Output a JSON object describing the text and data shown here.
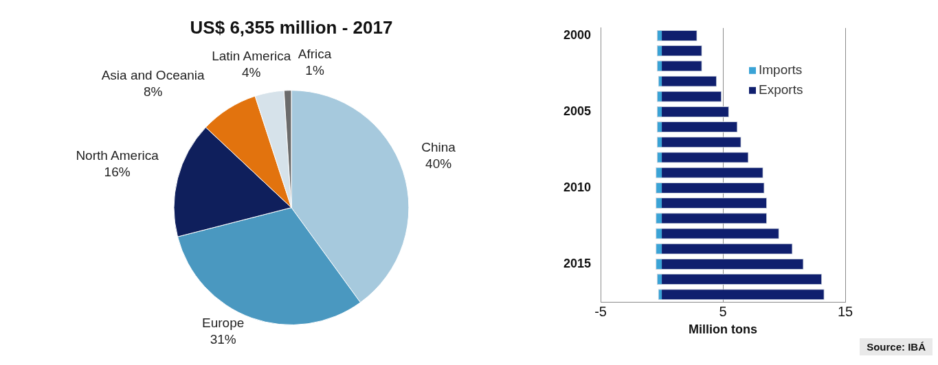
{
  "chart_data": [
    {
      "type": "pie",
      "title": "US$ 6,355 million - 2017",
      "categories": [
        "China",
        "Europe",
        "North America",
        "Asia and Oceania",
        "Latin America",
        "Africa"
      ],
      "values": [
        40,
        31,
        16,
        8,
        4,
        1
      ],
      "colors": [
        "#a6c9dd",
        "#4a98c0",
        "#0f1f5c",
        "#e2730e",
        "#d6e2ea",
        "#6b6b6b"
      ],
      "value_labels": [
        "40%",
        "31%",
        "16%",
        "8%",
        "4%",
        "1%"
      ]
    },
    {
      "type": "bar",
      "orientation": "horizontal",
      "stacked": true,
      "xlabel": "Million tons",
      "categories": [
        "2000",
        null,
        null,
        null,
        null,
        "2005",
        null,
        null,
        null,
        null,
        "2010",
        null,
        null,
        null,
        null,
        "2015",
        null,
        null
      ],
      "series": [
        {
          "name": "Imports",
          "color": "#3aa3d6",
          "values": [
            -0.4,
            -0.4,
            -0.4,
            -0.3,
            -0.4,
            -0.4,
            -0.4,
            -0.4,
            -0.4,
            -0.5,
            -0.5,
            -0.5,
            -0.5,
            -0.5,
            -0.5,
            -0.5,
            -0.4,
            -0.3
          ]
        },
        {
          "name": "Exports",
          "color": "#0f1f6e",
          "values": [
            2.9,
            3.3,
            3.3,
            4.5,
            4.9,
            5.5,
            6.2,
            6.5,
            7.1,
            8.3,
            8.4,
            8.6,
            8.6,
            9.6,
            10.7,
            11.6,
            13.1,
            13.3
          ]
        }
      ],
      "xlim": [
        -5,
        15
      ],
      "xticks": [
        -5,
        5,
        15
      ],
      "grid": "x",
      "legend": "top right",
      "annotations": [
        "Source: IBÁ"
      ]
    }
  ]
}
